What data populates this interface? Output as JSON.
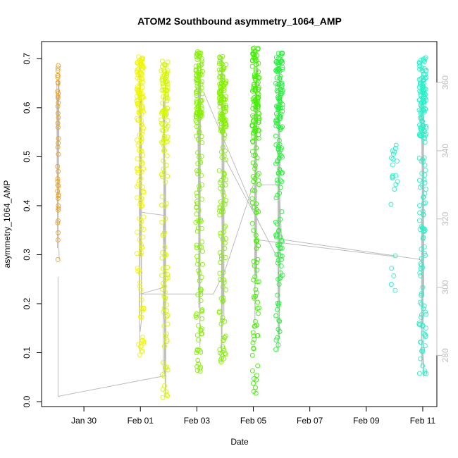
{
  "chart_data": {
    "type": "scatter",
    "title": "ATOM2 Southbound asymmetry_1064_AMP",
    "xlabel": "Date",
    "ylabel": "asymmetry_1064_AMP",
    "x_range": [
      "2025-01-28T12:00",
      "2025-02-11T12:00"
    ],
    "ylim_left": [
      -0.01,
      0.735
    ],
    "ylim_right": [
      265,
      372
    ],
    "x_ticks": [
      {
        "date": "2025-01-30",
        "label": "Jan 30"
      },
      {
        "date": "2025-02-01",
        "label": "Feb 01"
      },
      {
        "date": "2025-02-03",
        "label": "Feb 03"
      },
      {
        "date": "2025-02-05",
        "label": "Feb 05"
      },
      {
        "date": "2025-02-07",
        "label": "Feb 07"
      },
      {
        "date": "2025-02-09",
        "label": "Feb 09"
      },
      {
        "date": "2025-02-11",
        "label": "Feb 11"
      }
    ],
    "y_ticks_left": [
      0.0,
      0.1,
      0.2,
      0.3,
      0.4,
      0.5,
      0.6,
      0.7
    ],
    "y_tick_labels_left": [
      "0.0",
      "0.1",
      "0.2",
      "0.3",
      "0.4",
      "0.5",
      "0.6",
      "0.7"
    ],
    "y_ticks_right": [
      280,
      300,
      320,
      340,
      360
    ],
    "y_tick_labels_right": [
      "280",
      "300",
      "320",
      "340",
      "360"
    ],
    "grid": false,
    "colors": {
      "line": "#bdbdbd",
      "axis": "#000000",
      "right_axis": "#bdbdbd",
      "groups": [
        "#f0a21a",
        "#eef700",
        "#d7f700",
        "#84f000",
        "#40f000",
        "#28f03c",
        "#2af0c8"
      ]
    },
    "groups": [
      {
        "day": "2025-01-29",
        "color_index": 0,
        "samples": [
          {
            "x": "2025-01-29T01:06",
            "y": 0.686
          },
          {
            "x": "2025-01-29T01:11",
            "y": 0.62
          },
          {
            "x": "2025-01-29T01:16",
            "y": 0.58
          },
          {
            "x": "2025-01-29T01:21",
            "y": 0.505
          },
          {
            "x": "2025-01-29T01:26",
            "y": 0.48
          },
          {
            "x": "2025-01-29T01:31",
            "y": 0.455
          },
          {
            "x": "2025-01-29T01:36",
            "y": 0.45
          },
          {
            "x": "2025-01-29T01:41",
            "y": 0.43
          },
          {
            "x": "2025-01-29T01:46",
            "y": 0.415
          },
          {
            "x": "2025-01-29T01:51",
            "y": 0.4
          },
          {
            "x": "2025-01-29T01:56",
            "y": 0.47
          },
          {
            "x": "2025-01-29T02:01",
            "y": 0.44
          },
          {
            "x": "2025-01-29T02:06",
            "y": 0.42
          },
          {
            "x": "2025-01-29T02:11",
            "y": 0.395
          },
          {
            "x": "2025-01-29T02:16",
            "y": 0.365
          },
          {
            "x": "2025-01-29T02:21",
            "y": 0.345
          },
          {
            "x": "2025-01-29T02:26",
            "y": 0.33
          },
          {
            "x": "2025-01-29T02:31",
            "y": 0.29
          },
          {
            "x": "2025-01-29T02:36",
            "y": 0.65
          },
          {
            "x": "2025-01-29T02:41",
            "y": 0.61
          },
          {
            "x": "2025-01-29T02:46",
            "y": 0.56
          }
        ],
        "count": 40,
        "y_min": 0.29,
        "y_max": 0.686,
        "bias": 0.5
      },
      {
        "day": "2025-02-01",
        "color_index": 1,
        "count": 170,
        "y_min": 0.095,
        "y_max": 0.705,
        "bias": 0.5
      },
      {
        "day": "2025-02-01",
        "color_index": 2,
        "count": 150,
        "y_min": 0.008,
        "y_max": 0.695,
        "bias": 0.4
      },
      {
        "day": "2025-02-03",
        "color_index": 3,
        "count": 170,
        "y_min": 0.062,
        "y_max": 0.715,
        "bias": 0.6
      },
      {
        "day": "2025-02-03",
        "color_index": 3,
        "count": 180,
        "y_min": 0.078,
        "y_max": 0.708,
        "bias": 0.55
      },
      {
        "day": "2025-02-05",
        "color_index": 4,
        "count": 180,
        "y_min": 0.01,
        "y_max": 0.722,
        "bias": 0.5
      },
      {
        "day": "2025-02-05",
        "color_index": 5,
        "count": 170,
        "y_min": 0.1,
        "y_max": 0.712,
        "bias": 0.5
      },
      {
        "day": "2025-02-10",
        "color_index": 6,
        "count": 22,
        "y_min": 0.197,
        "y_max": 0.525,
        "bias": 0.3
      },
      {
        "day": "2025-02-10",
        "color_index": 6,
        "count": 200,
        "y_min": 0.05,
        "y_max": 0.705,
        "bias": 0.5
      }
    ],
    "line_path": [
      {
        "x": "2025-01-29T02:00",
        "y2": 303
      },
      {
        "x": "2025-01-29T02:00",
        "y2": 268
      },
      {
        "x": "2025-02-01T20:30",
        "y2": 274
      },
      {
        "x": "2025-02-01T20:30",
        "y2": 300
      },
      {
        "x": "2025-02-01T00:00",
        "y2": 298
      },
      {
        "x": "2025-02-03T14:00",
        "y2": 298
      },
      {
        "x": "2025-02-04T00:00",
        "y2": 305
      },
      {
        "x": "2025-02-05T00:00",
        "y2": 330
      },
      {
        "x": "2025-02-05T22:00",
        "y2": 330
      },
      {
        "x": "2025-02-06T00:00",
        "y2": 314
      },
      {
        "x": "2025-02-11T00:00",
        "y2": 308
      }
    ],
    "segments": [
      {
        "x1": "2025-02-01T00:00",
        "y1": 322,
        "x2": "2025-02-01T21:00",
        "y2": 321
      },
      {
        "x1": "2025-02-03T06:00",
        "y1": 357,
        "x2": "2025-02-05T06:00",
        "y2": 318
      },
      {
        "x1": "2025-02-03T22:00",
        "y1": 339,
        "x2": "2025-02-05T23:00",
        "y2": 307
      },
      {
        "x1": "2025-02-05T00:00",
        "y1": 314,
        "x2": "2025-02-10T00:00",
        "y2": 309
      }
    ]
  }
}
